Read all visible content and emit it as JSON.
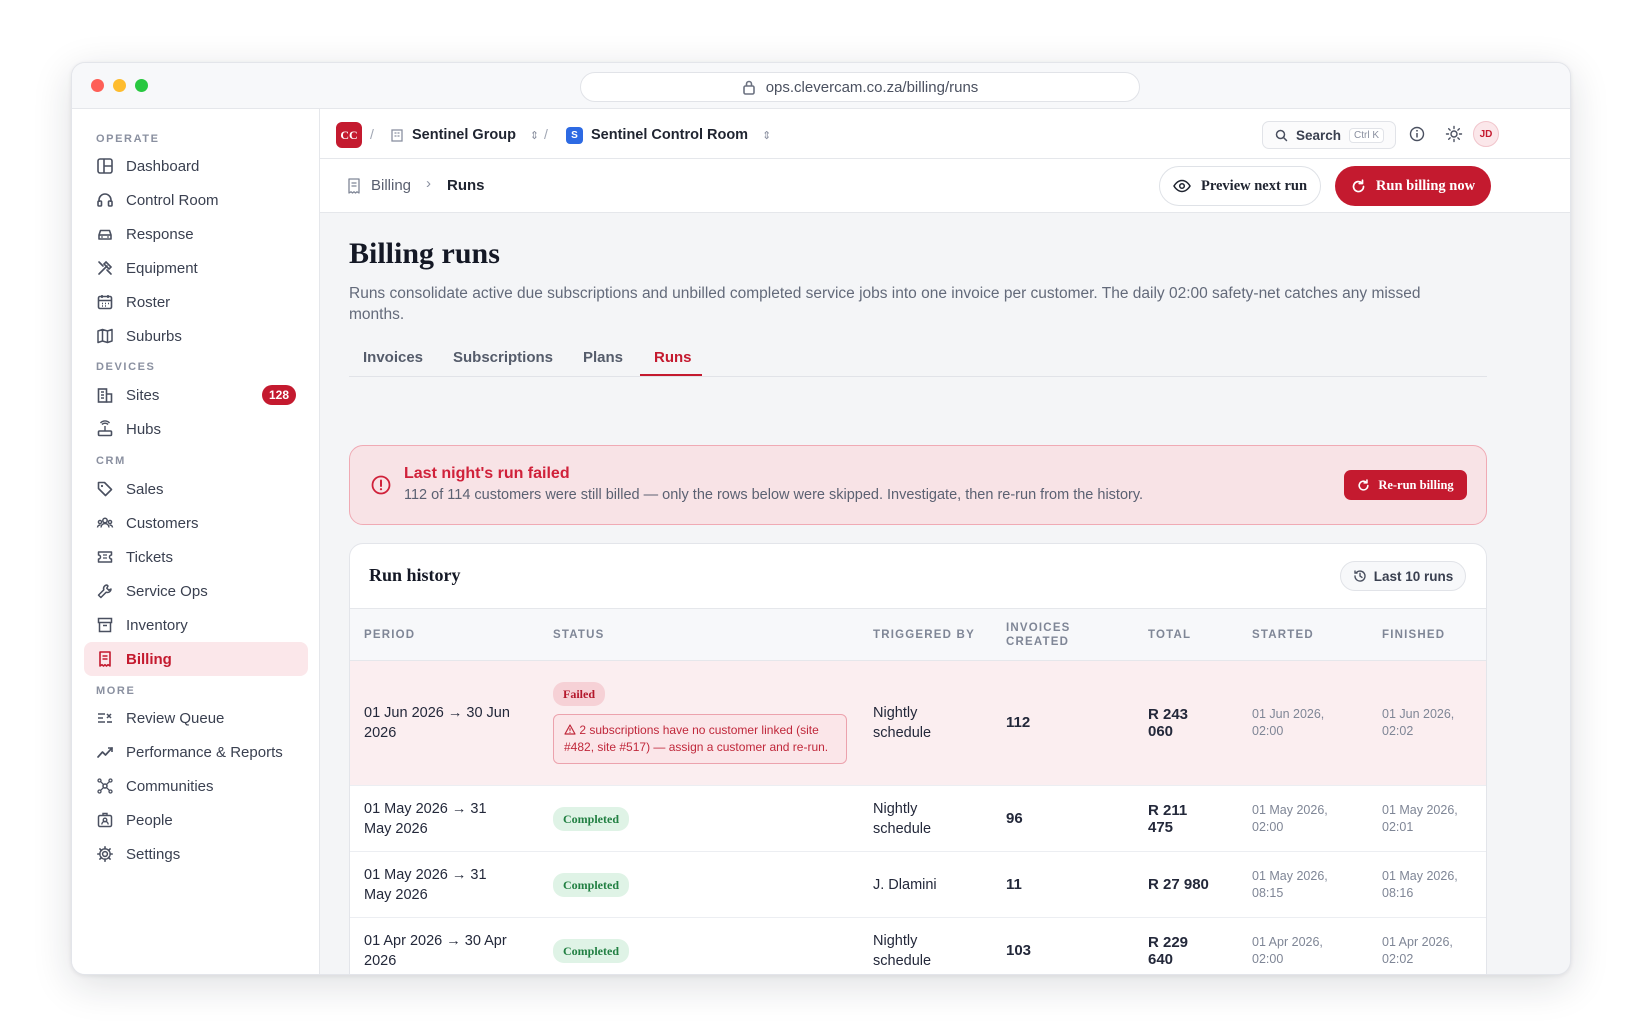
{
  "browser": {
    "url": "ops.clevercam.co.za/billing/runs"
  },
  "sidebar": {
    "sections": {
      "operate": "OPERATE",
      "devices": "DEVICES",
      "crm": "CRM",
      "more": "MORE"
    },
    "items": [
      {
        "label": "Dashboard",
        "icon": "dashboard-icon"
      },
      {
        "label": "Control Room",
        "icon": "headset-icon"
      },
      {
        "label": "Response",
        "icon": "car-icon"
      },
      {
        "label": "Equipment",
        "icon": "tools-icon"
      },
      {
        "label": "Roster",
        "icon": "calendar-icon"
      },
      {
        "label": "Suburbs",
        "icon": "map-icon"
      },
      {
        "label": "Sites",
        "icon": "building-icon",
        "badge": "128"
      },
      {
        "label": "Hubs",
        "icon": "router-icon"
      },
      {
        "label": "Sales",
        "icon": "tag-icon"
      },
      {
        "label": "Customers",
        "icon": "users-icon"
      },
      {
        "label": "Tickets",
        "icon": "ticket-icon"
      },
      {
        "label": "Service Ops",
        "icon": "wrench-icon"
      },
      {
        "label": "Inventory",
        "icon": "archive-icon"
      },
      {
        "label": "Billing",
        "icon": "receipt-icon",
        "active": true
      },
      {
        "label": "Review Queue",
        "icon": "list-check-icon"
      },
      {
        "label": "Performance & Reports",
        "icon": "trend-icon"
      },
      {
        "label": "Communities",
        "icon": "network-icon"
      },
      {
        "label": "People",
        "icon": "badge-icon"
      },
      {
        "label": "Settings",
        "icon": "gear-icon"
      }
    ]
  },
  "topbar": {
    "logo": "CC",
    "org": "Sentinel Group",
    "room_initial": "S",
    "room": "Sentinel Control Room",
    "search_label": "Search",
    "search_shortcut": "Ctrl K",
    "avatar": "JD"
  },
  "header": {
    "breadcrumb_parent": "Billing",
    "breadcrumb_current": "Runs",
    "preview_label": "Preview next run",
    "run_label": "Run billing now"
  },
  "page": {
    "title": "Billing runs",
    "description": "Runs consolidate active due subscriptions and unbilled completed service jobs into one invoice per customer. The daily 02:00 safety-net catches any missed months."
  },
  "tabs": [
    "Invoices",
    "Subscriptions",
    "Plans",
    "Runs"
  ],
  "active_tab": "Runs",
  "alert": {
    "title": "Last night's run failed",
    "message": "112 of 114 customers were still billed — only the rows below were skipped. Investigate, then re-run from the history.",
    "button": "Re-run billing"
  },
  "history": {
    "title": "Run history",
    "filter": "Last 10 runs",
    "columns": [
      "PERIOD",
      "STATUS",
      "TRIGGERED BY",
      "INVOICES CREATED",
      "TOTAL",
      "STARTED",
      "FINISHED"
    ],
    "rows": [
      {
        "period": "01 Jun 2026 → 30 Jun 2026",
        "status": "Failed",
        "error": "2 subscriptions have no customer linked (site #482, site #517) — assign a customer and re-run.",
        "triggered": "Nightly schedule",
        "invoices": "112",
        "total": "R 243 060",
        "started": "01 Jun 2026, 02:00",
        "finished": "01 Jun 2026, 02:02"
      },
      {
        "period": "01 May 2026 → 31 May 2026",
        "status": "Completed",
        "triggered": "Nightly schedule",
        "invoices": "96",
        "total": "R 211 475",
        "started": "01 May 2026, 02:00",
        "finished": "01 May 2026, 02:01"
      },
      {
        "period": "01 May 2026 → 31 May 2026",
        "status": "Completed",
        "triggered": "J. Dlamini",
        "invoices": "11",
        "total": "R 27 980",
        "started": "01 May 2026, 08:15",
        "finished": "01 May 2026, 08:16"
      },
      {
        "period": "01 Apr 2026 → 30 Apr 2026",
        "status": "Completed",
        "triggered": "Nightly schedule",
        "invoices": "103",
        "total": "R 229 640",
        "started": "01 Apr 2026, 02:00",
        "finished": "01 Apr 2026, 02:02"
      }
    ]
  },
  "colors": {
    "accent": "#c41a2f",
    "success": "#228043",
    "sidebar_active_bg": "#fbe7ea"
  }
}
